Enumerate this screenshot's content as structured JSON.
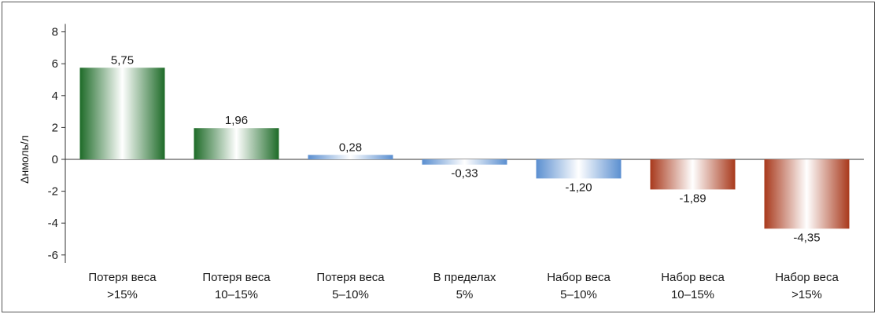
{
  "chart_data": {
    "type": "bar",
    "ylabel": "Δнмоль/л",
    "xlabel": "",
    "title": "",
    "ylim": [
      -6.5,
      8.5
    ],
    "yticks": [
      8,
      6,
      4,
      2,
      0,
      -2,
      -4,
      -6
    ],
    "yticks_labels": [
      "8",
      "6",
      "4",
      "2",
      "0",
      "-2",
      "-4",
      "-6"
    ],
    "grid": false,
    "categories": [
      [
        "Потеря веса",
        ">15%"
      ],
      [
        "Потеря веса",
        "10–15%"
      ],
      [
        "Потеря веса",
        "5–10%"
      ],
      [
        "В пределах",
        "5%"
      ],
      [
        "Набор веса",
        "5–10%"
      ],
      [
        "Набор веса",
        "10–15%"
      ],
      [
        "Набор веса",
        ">15%"
      ]
    ],
    "values": [
      5.75,
      1.96,
      0.28,
      -0.33,
      -1.2,
      -1.89,
      -4.35
    ],
    "value_labels": [
      "5,75",
      "1,96",
      "0,28",
      "-0,33",
      "-1,20",
      "-1,89",
      "-4,35"
    ],
    "bar_colors": [
      "#1e6b28",
      "#1e6b28",
      "#5b8fd0",
      "#5b8fd0",
      "#5b8fd0",
      "#a8391c",
      "#a8391c"
    ]
  }
}
